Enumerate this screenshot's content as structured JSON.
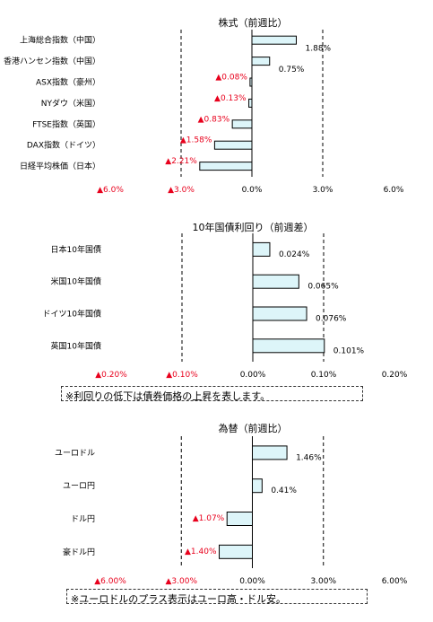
{
  "colors": {
    "bar_fill": "#ddf5f9",
    "bar_stroke": "#000000",
    "negative": "#e8001c",
    "axis": "#000000"
  },
  "chart_data": [
    {
      "type": "bar",
      "orientation": "horizontal",
      "title": "株式（前週比）",
      "categories": [
        "上海総合指数（中国）",
        "香港ハンセン指数（中国）",
        "ASX指数（豪州）",
        "NYダウ（米国）",
        "FTSE指数（英国）",
        "DAX指数（ドイツ）",
        "日経平均株価（日本）"
      ],
      "values": [
        1.88,
        0.75,
        -0.08,
        -0.13,
        -0.83,
        -1.58,
        -2.21
      ],
      "value_labels": [
        "1.88%",
        "0.75%",
        "▲0.08%",
        "▲0.13%",
        "▲0.83%",
        "▲1.58%",
        "▲2.21%"
      ],
      "xlim": [
        -6.0,
        6.0
      ],
      "xticks": [
        -6,
        -3,
        0,
        3,
        6
      ],
      "xtick_labels": [
        "▲6.0%",
        "▲3.0%",
        "0.0%",
        "3.0%",
        "6.0%"
      ],
      "gridlines": [
        -3,
        3
      ],
      "grid": "dashed",
      "legend": "none"
    },
    {
      "type": "bar",
      "orientation": "horizontal",
      "title": "10年国債利回り（前週差）",
      "categories": [
        "日本10年国債",
        "米国10年国債",
        "ドイツ10年国債",
        "英国10年国債"
      ],
      "values": [
        0.024,
        0.065,
        0.076,
        0.101
      ],
      "value_labels": [
        "0.024%",
        "0.065%",
        "0.076%",
        "0.101%"
      ],
      "xlim": [
        -0.2,
        0.2
      ],
      "xticks": [
        -0.2,
        -0.1,
        0,
        0.1,
        0.2
      ],
      "xtick_labels": [
        "▲0.20%",
        "▲0.10%",
        "0.00%",
        "0.10%",
        "0.20%"
      ],
      "gridlines": [
        -0.1,
        0.1
      ],
      "grid": "dashed",
      "legend": "none"
    },
    {
      "type": "bar",
      "orientation": "horizontal",
      "title": "為替（前週比）",
      "categories": [
        "ユーロドル",
        "ユーロ円",
        "ドル円",
        "豪ドル円"
      ],
      "values": [
        1.46,
        0.41,
        -1.07,
        -1.4
      ],
      "value_labels": [
        "1.46%",
        "0.41%",
        "▲1.07%",
        "▲1.40%"
      ],
      "xlim": [
        -6.0,
        6.0
      ],
      "xticks": [
        -6,
        -3,
        0,
        3,
        6
      ],
      "xtick_labels": [
        "▲6.00%",
        "▲3.00%",
        "0.00%",
        "3.00%",
        "6.00%"
      ],
      "gridlines": [
        -3,
        3
      ],
      "grid": "dashed",
      "legend": "none"
    }
  ],
  "notes": {
    "bond": "※利回りの低下は債券価格の上昇を表します。",
    "fx": "※ユーロドルのプラス表示はユーロ高・ドル安。"
  }
}
